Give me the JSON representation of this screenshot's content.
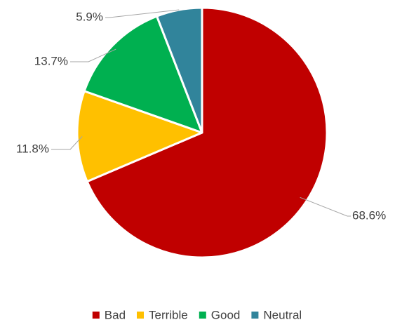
{
  "chart_data": {
    "type": "pie",
    "title": "",
    "slices": [
      {
        "label": "Bad",
        "value": 68.6,
        "display": "68.6%",
        "color": "#C00000"
      },
      {
        "label": "Terrible",
        "value": 11.8,
        "display": "11.8%",
        "color": "#FFC000"
      },
      {
        "label": "Good",
        "value": 13.7,
        "display": "13.7%",
        "color": "#00B050"
      },
      {
        "label": "Neutral",
        "value": 5.9,
        "display": "5.9%",
        "color": "#31849B"
      }
    ],
    "start_angle_degrees": 0,
    "direction": "clockwise",
    "data_labels": "outside-with-leader-lines",
    "legend": {
      "position": "bottom",
      "entries": [
        "Bad",
        "Terrible",
        "Good",
        "Neutral"
      ]
    }
  }
}
